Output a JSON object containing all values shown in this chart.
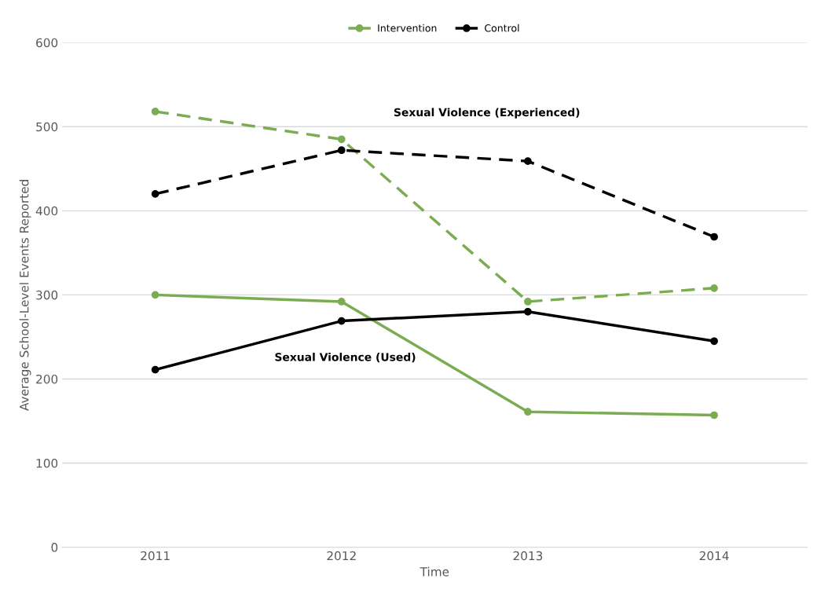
{
  "chart_data": {
    "type": "line",
    "xlabel": "Time",
    "ylabel": "Average School-Level Events Reported",
    "categories": [
      "2011",
      "2012",
      "2013",
      "2014"
    ],
    "series": [
      {
        "name": "Intervention",
        "color": "#7aac52",
        "line_style": "solid",
        "values": [
          300,
          292,
          161,
          157
        ]
      },
      {
        "name": "Control",
        "color": "#000000",
        "line_style": "solid",
        "values": [
          211,
          269,
          280,
          245
        ]
      },
      {
        "color": "#7aac52",
        "line_style": "dashed",
        "values": [
          518,
          485,
          292,
          308
        ]
      },
      {
        "color": "#000000",
        "line_style": "dashed",
        "values": [
          420,
          472,
          459,
          369
        ]
      }
    ],
    "annotations": [
      "Sexual Violence (Experienced)",
      "Sexual Violence (Used)"
    ],
    "ylim": [
      0,
      600
    ],
    "yticks": [
      0,
      100,
      200,
      300,
      400,
      500,
      600
    ],
    "grid": "y",
    "legend": "top",
    "marker": "circle"
  }
}
